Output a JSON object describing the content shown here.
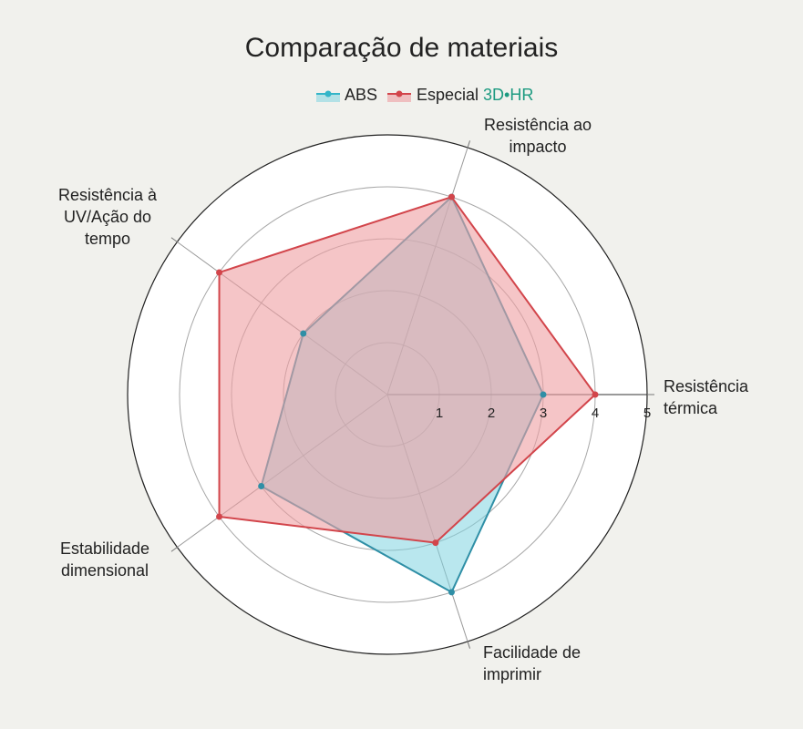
{
  "chart_data": {
    "type": "radar",
    "title": "Comparação de materiais",
    "legend": {
      "placement": "top",
      "entries": [
        {
          "name": "ABS",
          "color": "#33b5c8"
        },
        {
          "name": "Especial",
          "brand_suffix": "3D•HR",
          "brand_color": "#1c9a80",
          "color": "#d2454b"
        }
      ]
    },
    "axes": [
      {
        "label": [
          "Resistência",
          "térmica"
        ]
      },
      {
        "label": [
          "Resistência ao",
          "impacto"
        ]
      },
      {
        "label": [
          "Resistência à",
          "UV/Ação do",
          "tempo"
        ]
      },
      {
        "label": [
          "Estabilidade",
          "dimensional"
        ]
      },
      {
        "label": [
          "Facilidade de",
          "imprimir"
        ]
      }
    ],
    "r_ticks": [
      "1",
      "2",
      "3",
      "4",
      "5"
    ],
    "r_max": 5,
    "grid": true,
    "series": [
      {
        "name": "ABS",
        "values": [
          3,
          4,
          2,
          3,
          4
        ],
        "line_color": "#2f8fa6",
        "fill_color": "#7fd4e0"
      },
      {
        "name": "Especial",
        "values": [
          4,
          4,
          4,
          4,
          3
        ],
        "line_color": "#d2454b",
        "fill_color": "#ef9ea1"
      }
    ]
  }
}
